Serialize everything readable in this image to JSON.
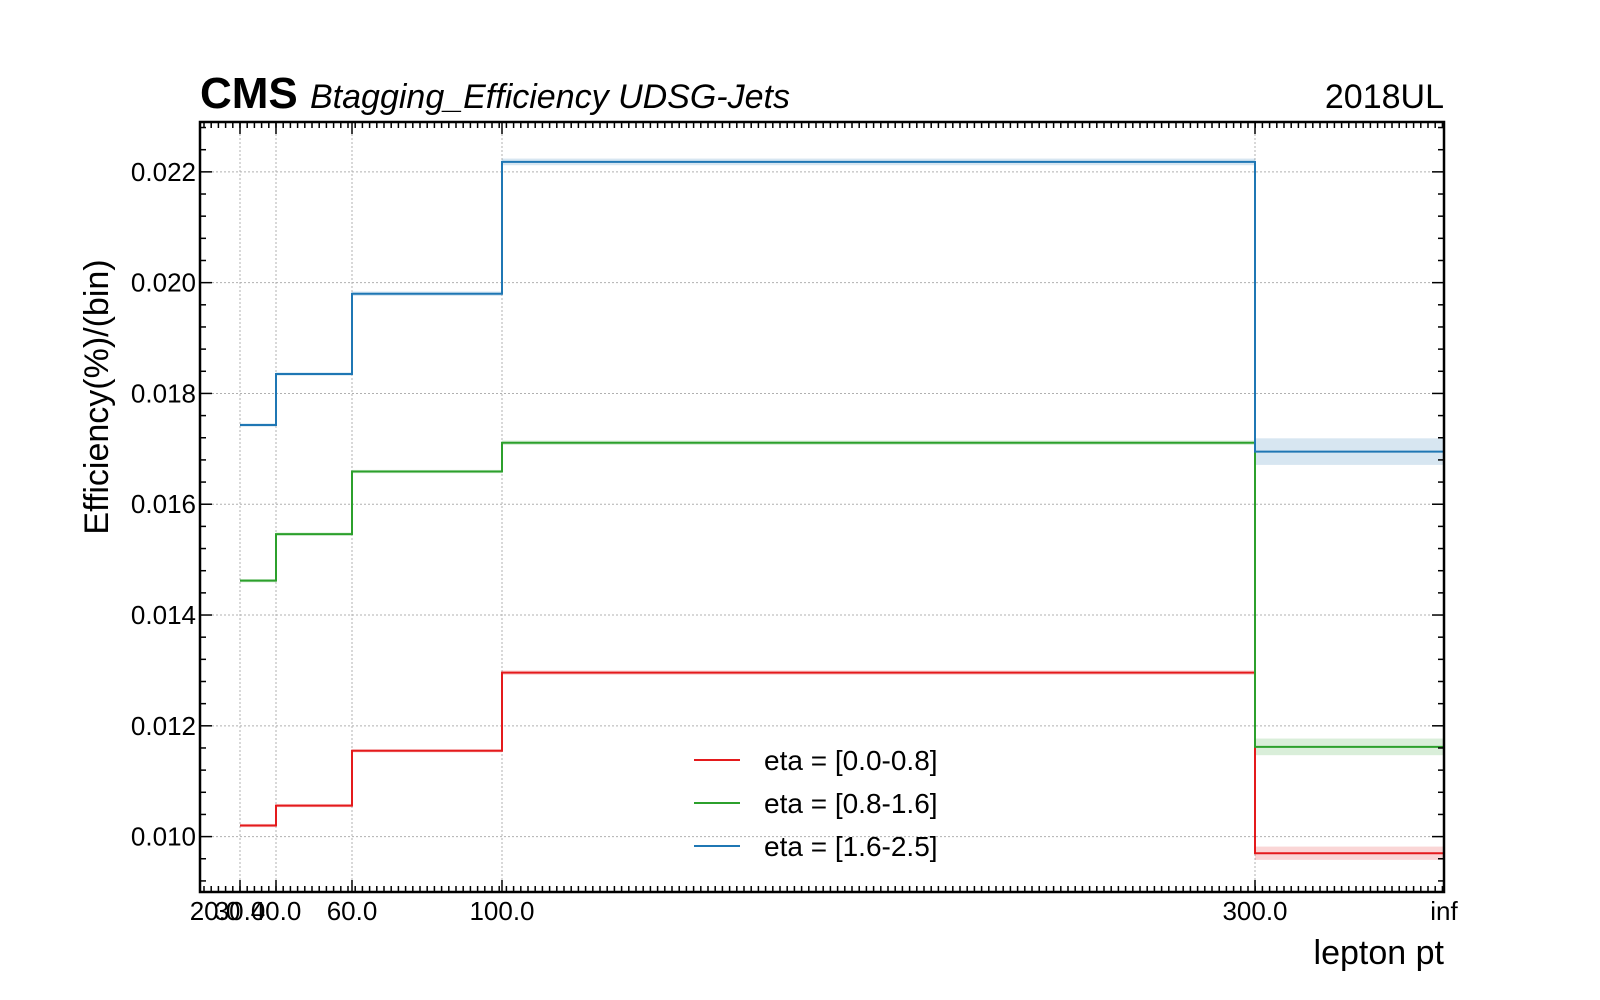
{
  "header": {
    "cms_label": "CMS",
    "title": "Btagging_Efficiency UDSG-Jets",
    "year": "2018UL"
  },
  "chart_data": {
    "type": "line",
    "step": true,
    "xlabel": "lepton pt",
    "ylabel": "Efficiency(%)/(bin)",
    "x_edges": [
      20.0,
      30.0,
      40.0,
      60.0,
      100.0,
      300.0,
      "inf"
    ],
    "x_tick_labels": [
      "20.0",
      "30.0",
      "40.0",
      "60.0",
      "100.0",
      "300.0",
      "inf"
    ],
    "ylim": [
      0.009,
      0.0229
    ],
    "y_ticks": [
      0.01,
      0.012,
      0.014,
      0.016,
      0.018,
      0.02,
      0.022
    ],
    "y_tick_labels": [
      "0.010",
      "0.012",
      "0.014",
      "0.016",
      "0.018",
      "0.020",
      "0.022"
    ],
    "grid": true,
    "legend_position": "bottom-center",
    "series": [
      {
        "name": "eta = [0.0-0.8]",
        "color": "#e41a1c",
        "values": [
          0.0102,
          0.01056,
          0.01155,
          0.01296,
          0.01296,
          0.0097
        ],
        "errors": [
          3e-05,
          3e-05,
          3e-05,
          4e-05,
          4e-05,
          0.00012
        ]
      },
      {
        "name": "eta = [0.8-1.6]",
        "color": "#2ca02c",
        "values": [
          0.01462,
          0.01546,
          0.01659,
          0.01711,
          0.01711,
          0.01162
        ],
        "errors": [
          3e-05,
          3e-05,
          3e-05,
          4e-05,
          4e-05,
          0.00015
        ]
      },
      {
        "name": "eta = [1.6-2.5]",
        "color": "#1f77b4",
        "values": [
          0.01743,
          0.01835,
          0.0198,
          0.02218,
          0.02218,
          0.01695
        ],
        "errors": [
          3e-05,
          3e-05,
          4e-05,
          6e-05,
          6e-05,
          0.00024
        ]
      }
    ]
  }
}
